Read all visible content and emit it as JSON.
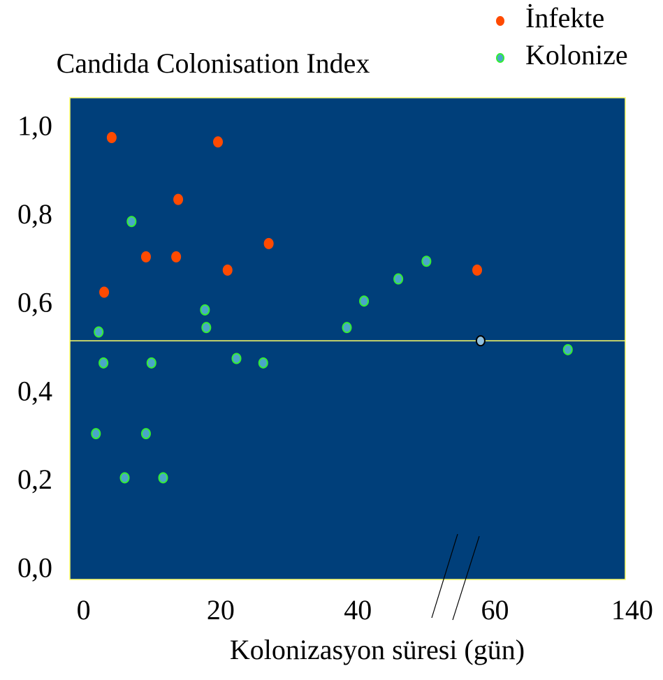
{
  "chart_data": {
    "type": "scatter",
    "title": "Candida Colonisation Index",
    "x_label": "Kolonizasyon süresi (gün)",
    "xlim": [
      -2,
      136
    ],
    "ylim": [
      -0.02,
      1.07
    ],
    "xticks": [
      0,
      20,
      40,
      60,
      140
    ],
    "yticks": [
      {
        "value": 0,
        "label": "0,0"
      },
      {
        "value": 0.2,
        "label": "0,2"
      },
      {
        "value": 0.4,
        "label": "0,4"
      },
      {
        "value": 0.6,
        "label": "0,6"
      },
      {
        "value": 0.8,
        "label": "0,8"
      },
      {
        "value": 1.0,
        "label": "1,0"
      }
    ],
    "background": "#003f7a",
    "frame_color": "#ffff66",
    "hline": {
      "value": 0.52,
      "color": "#ffff66"
    },
    "legend": "upper right",
    "series": [
      {
        "name": "İnfekte",
        "color": "#ff4a00",
        "edgecolor": "#ff4a00",
        "x": [
          4.1,
          19.6,
          13.8,
          9.1,
          13.5,
          3.0,
          21.0,
          27.0,
          57.4
        ],
        "values": [
          0.98,
          0.97,
          0.84,
          0.71,
          0.71,
          0.63,
          0.68,
          0.74,
          0.68
        ]
      },
      {
        "name": "Kolonize",
        "color": "#4aa6c8",
        "edgecolor": "#33ee33",
        "x": [
          7.0,
          2.2,
          2.9,
          1.8,
          9.1,
          6.0,
          11.6,
          9.9,
          17.7,
          17.9,
          22.3,
          26.2,
          38.4,
          40.9,
          45.9,
          50.0,
          102.5
        ],
        "values": [
          0.79,
          0.54,
          0.47,
          0.31,
          0.31,
          0.21,
          0.21,
          0.47,
          0.59,
          0.55,
          0.48,
          0.47,
          0.55,
          0.61,
          0.66,
          0.7,
          0.5
        ]
      },
      {
        "color": "#8fc0e0",
        "edgecolor": "#000000",
        "x": [
          57.9
        ],
        "values": [
          0.52
        ]
      }
    ]
  }
}
